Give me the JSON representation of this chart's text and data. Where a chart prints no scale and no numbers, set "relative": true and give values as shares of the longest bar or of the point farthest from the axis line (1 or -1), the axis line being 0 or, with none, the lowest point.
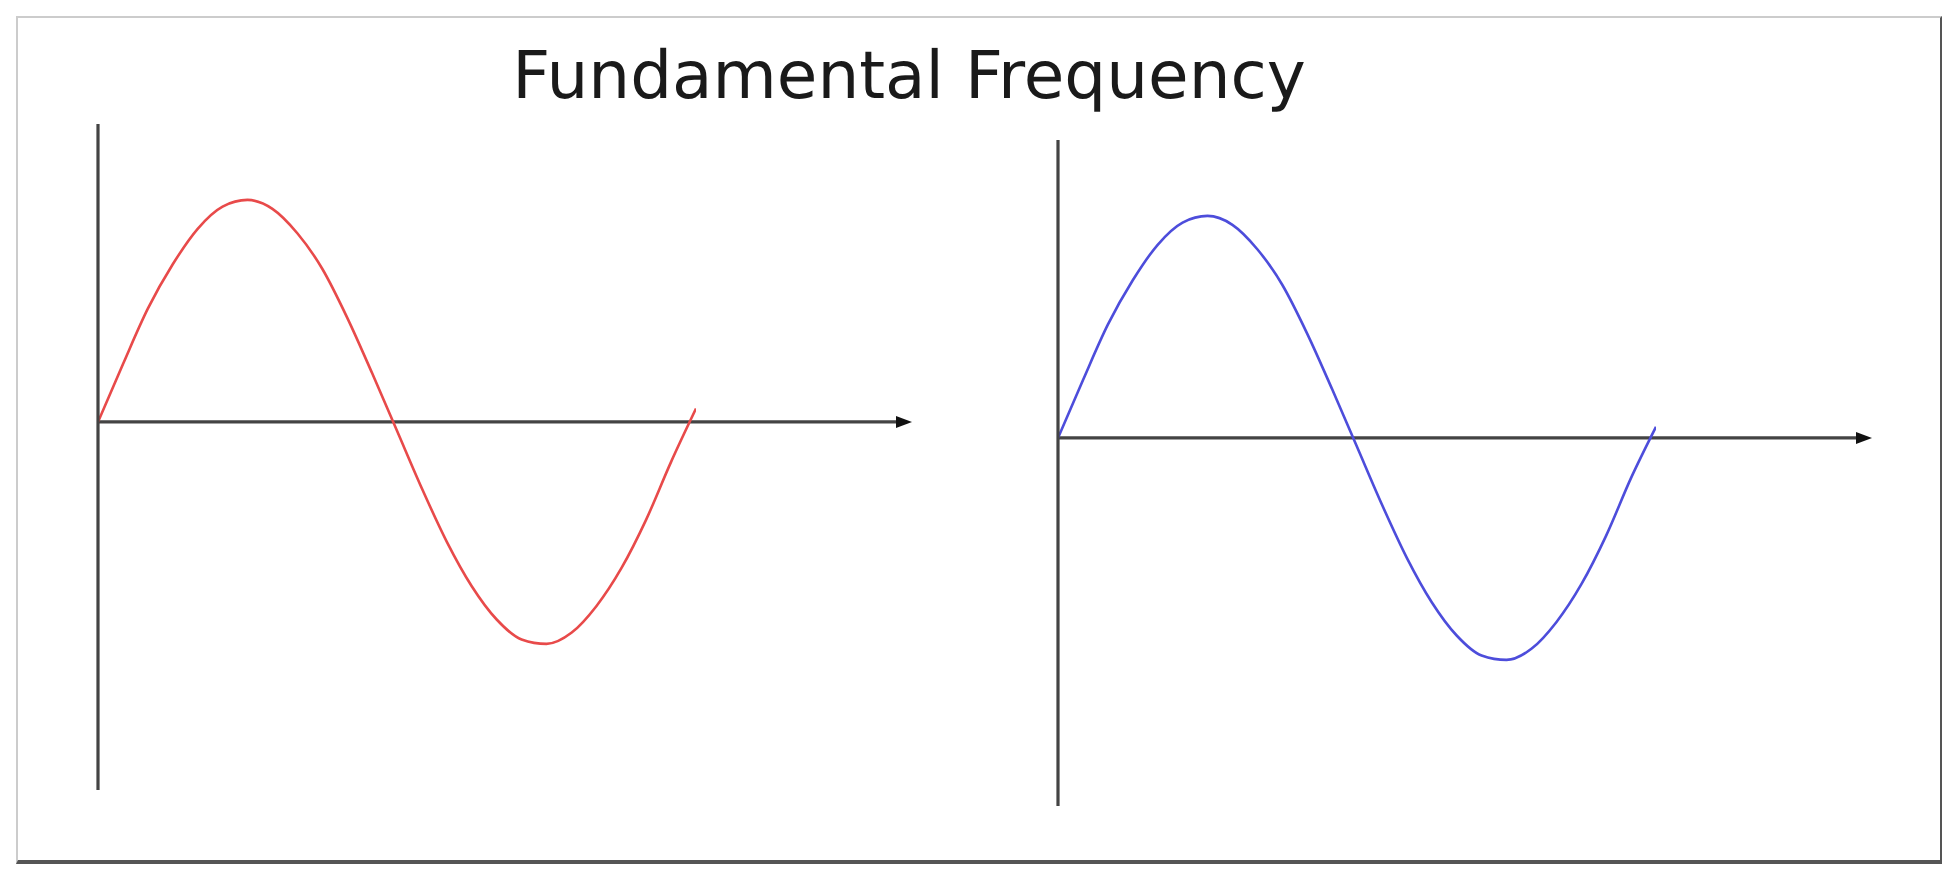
{
  "chart_data": [
    {
      "type": "line",
      "title": "Fundamental Frequency",
      "relative": true,
      "categories": [
        null,
        null,
        null,
        null,
        null,
        null,
        null,
        null,
        null,
        null,
        null,
        null,
        null,
        null,
        null,
        null,
        null,
        null,
        null,
        null,
        null,
        null,
        null,
        null,
        null
      ],
      "series": [
        {
          "color": "#e84a4a",
          "values": [
            0,
            0.26,
            0.51,
            0.71,
            0.87,
            0.97,
            1,
            0.96,
            0.85,
            0.69,
            0.47,
            0.22,
            -0.04,
            -0.3,
            -0.54,
            -0.74,
            -0.89,
            -0.98,
            -1,
            -0.95,
            -0.83,
            -0.66,
            -0.44,
            -0.18,
            0.06
          ]
        }
      ]
    },
    {
      "type": "line",
      "relative": true,
      "categories": [
        null,
        null,
        null,
        null,
        null,
        null,
        null,
        null,
        null,
        null,
        null,
        null,
        null,
        null,
        null,
        null,
        null,
        null,
        null,
        null,
        null,
        null,
        null,
        null,
        null
      ],
      "series": [
        {
          "color": "#4d4ddb",
          "values": [
            0,
            0.26,
            0.51,
            0.71,
            0.87,
            0.97,
            1,
            0.96,
            0.85,
            0.69,
            0.47,
            0.22,
            -0.04,
            -0.3,
            -0.54,
            -0.74,
            -0.89,
            -0.98,
            -1,
            -0.95,
            -0.83,
            -0.66,
            -0.44,
            -0.18,
            0.05
          ]
        }
      ]
    }
  ]
}
